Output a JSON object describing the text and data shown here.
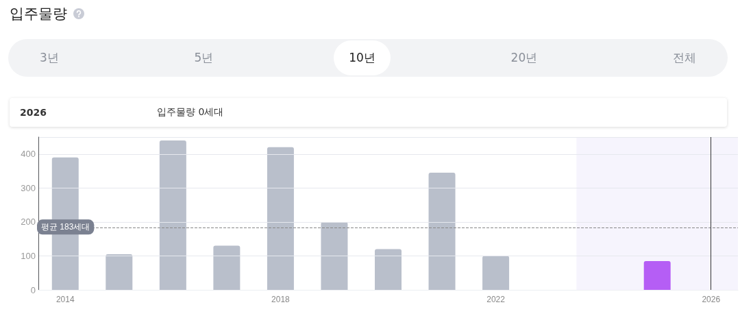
{
  "chart_data": {
    "type": "bar",
    "title": "입주물량",
    "x": [
      2014,
      2015,
      2016,
      2017,
      2018,
      2019,
      2020,
      2021,
      2022,
      2023,
      2024,
      2025,
      2026
    ],
    "values": [
      390,
      105,
      440,
      130,
      420,
      200,
      120,
      345,
      100,
      0,
      0,
      85,
      0
    ],
    "colors": [
      "#b9bfcb",
      "#b9bfcb",
      "#b9bfcb",
      "#b9bfcb",
      "#b9bfcb",
      "#b9bfcb",
      "#b9bfcb",
      "#b9bfcb",
      "#b9bfcb",
      "#b9bfcb",
      "#b9bfcb",
      "#b55ef5",
      "#b9bfcb"
    ],
    "xlim": [
      2013.5,
      2026.5
    ],
    "xticks": [
      2014,
      2018,
      2022,
      2026
    ],
    "ylim": [
      0,
      450
    ],
    "yticks": [
      0,
      100,
      200,
      300,
      400
    ],
    "grid": "y",
    "ref_lines": [
      {
        "axis": "y",
        "value": 183,
        "label": "평균 183세대",
        "line_style": "dashed",
        "color": "#888888"
      },
      {
        "axis": "x",
        "value": 2026,
        "color": "#333333"
      }
    ],
    "bands": [
      {
        "axis": "x",
        "from": 2023.5,
        "to": 2026.5,
        "color": "#f6f4fd"
      }
    ],
    "annotations": [
      "3년",
      "5년",
      "10년",
      "20년",
      "전체",
      "2026",
      "입주물량 0세대"
    ]
  }
}
